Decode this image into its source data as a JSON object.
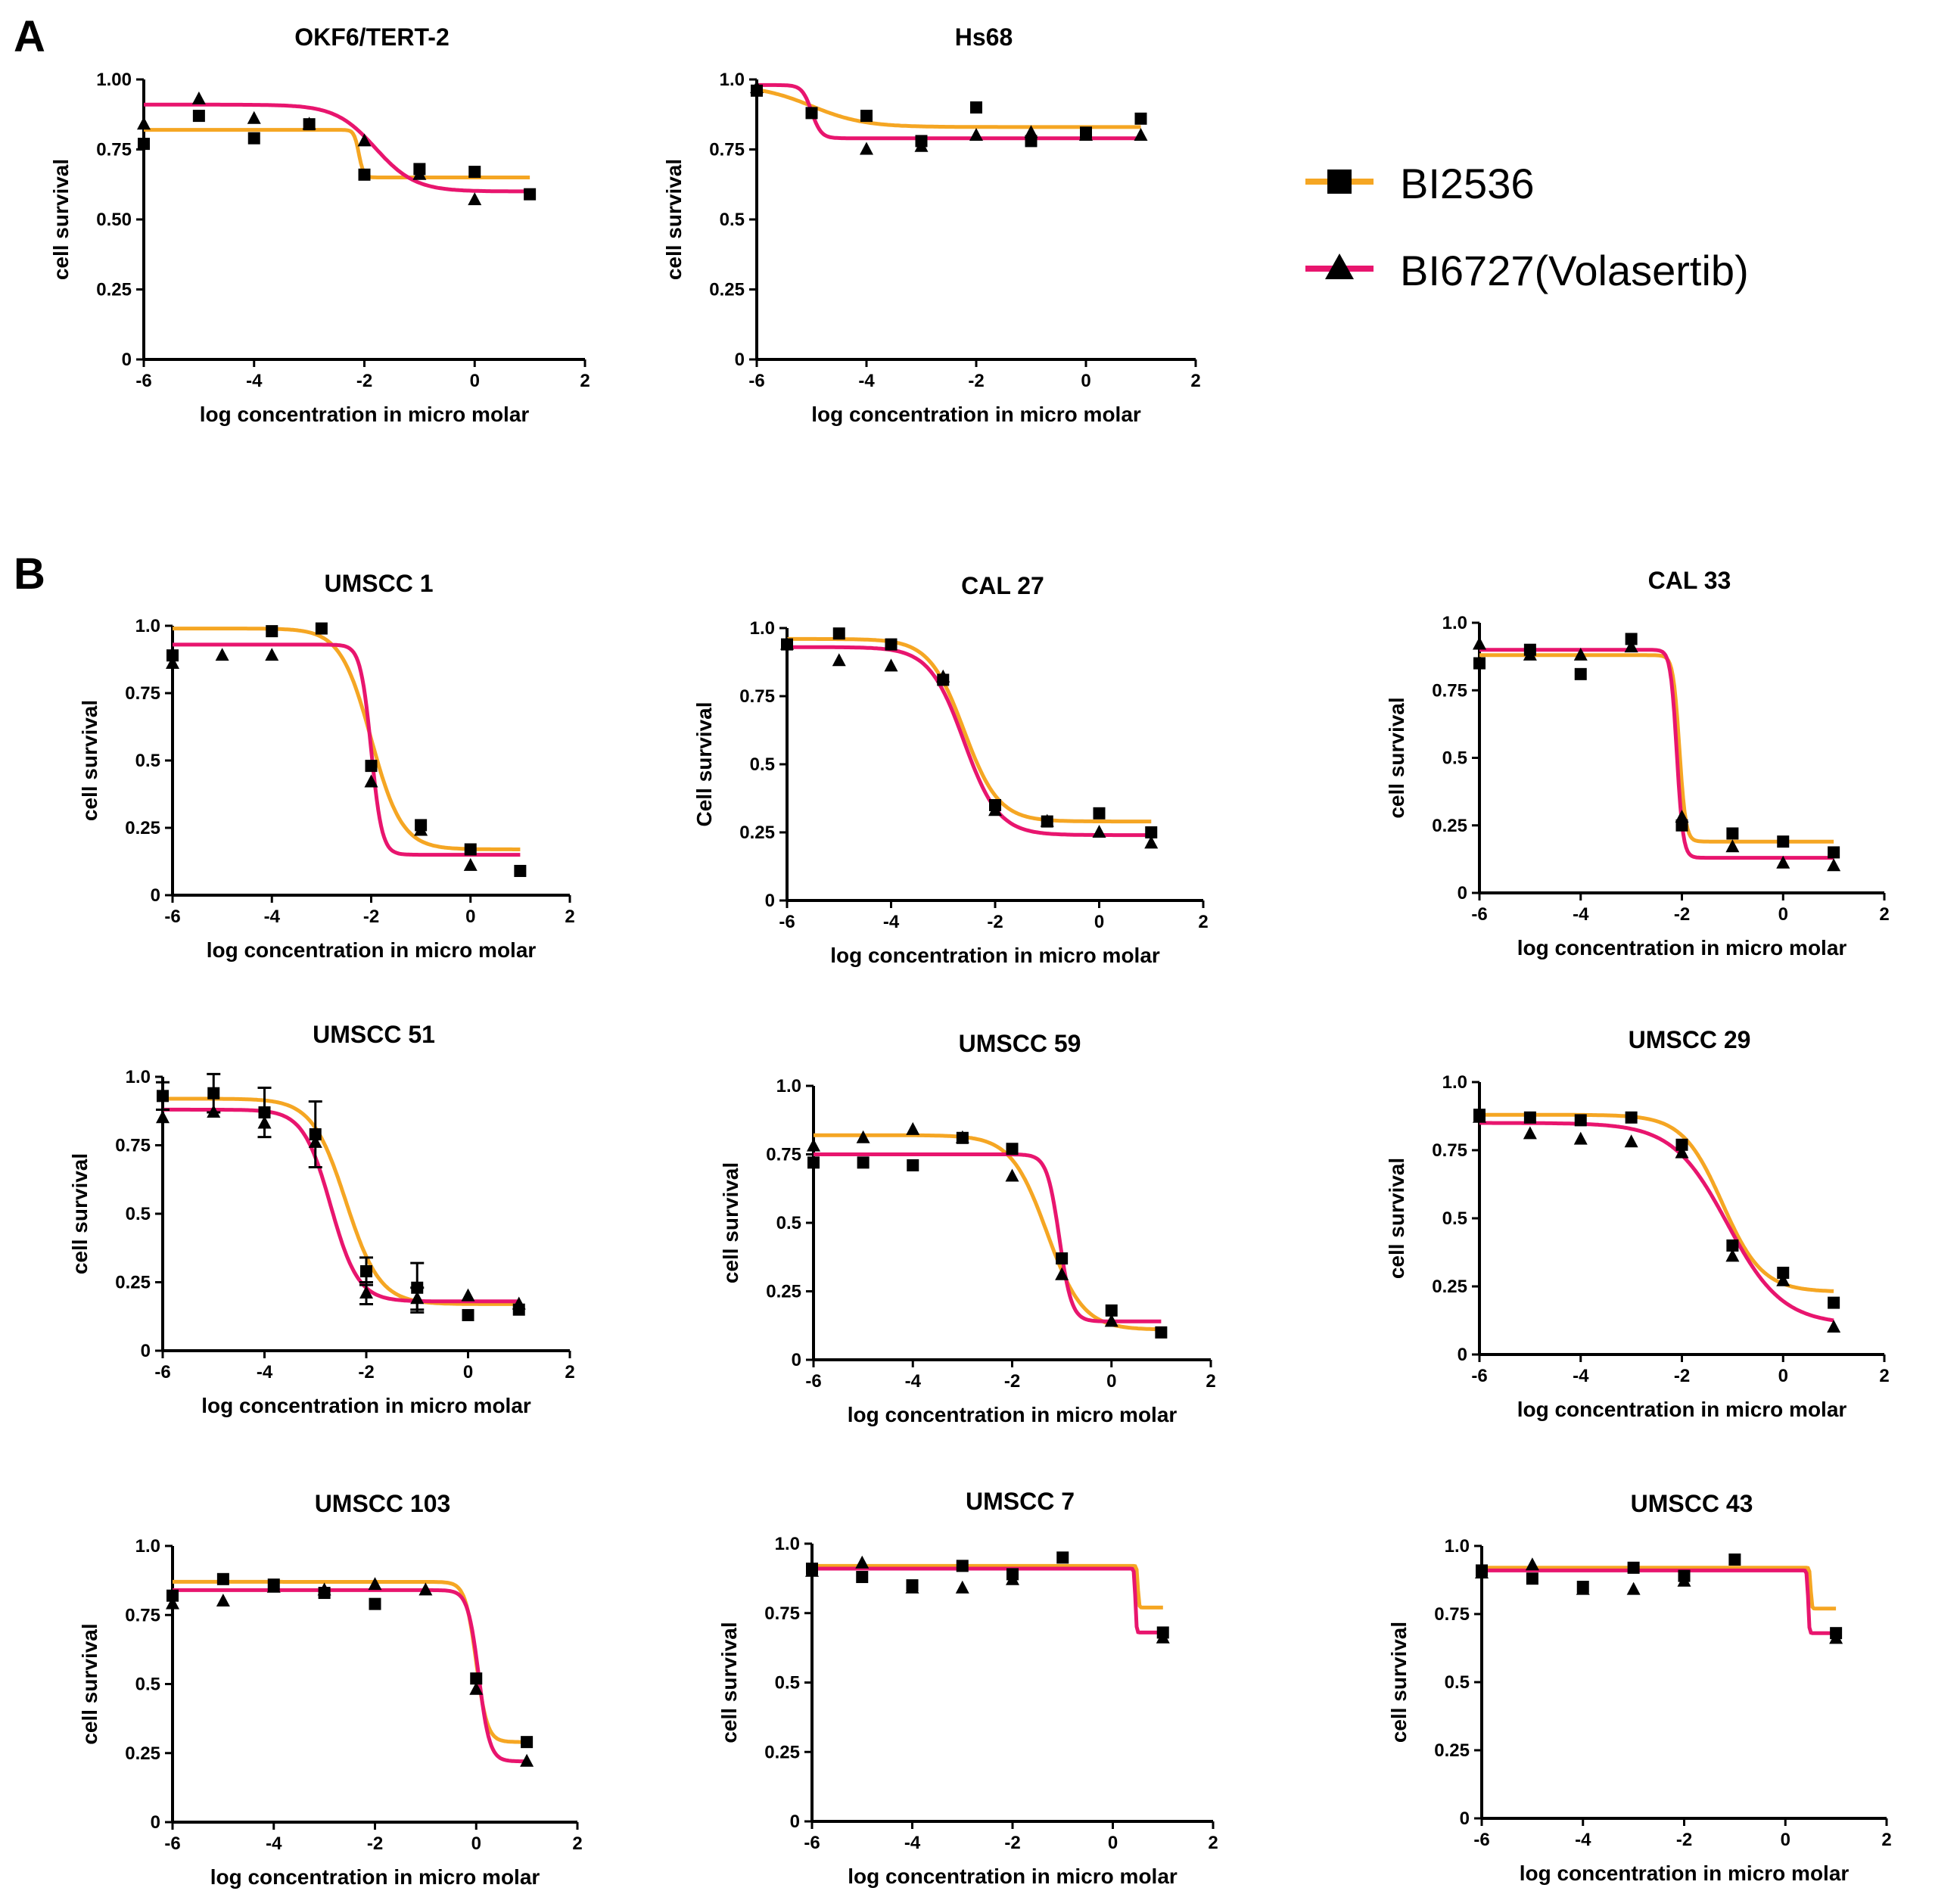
{
  "panels": {
    "a": "A",
    "b": "B"
  },
  "colors": {
    "bi2536": "#F5A623",
    "bi6727": "#E8156E",
    "marker": "#000000",
    "axis": "#000000"
  },
  "legend": {
    "entries": [
      {
        "label": "BI2536",
        "marker": "square",
        "color": "#F5A623"
      },
      {
        "label": "BI6727(Volasertib)",
        "marker": "triangle",
        "color": "#E8156E"
      }
    ]
  },
  "chart_data": [
    {
      "id": "okf6",
      "type": "scatter",
      "title": "OKF6/TERT-2",
      "xlabel": "log concentration in micro molar",
      "ylabel": "cell survival",
      "xlim": [
        -6,
        2
      ],
      "ylim": [
        0,
        1
      ],
      "xticks": [
        "-6",
        "-4",
        "-2",
        "0",
        "2"
      ],
      "yticks": [
        "0",
        "0.25",
        "0.50",
        "0.75",
        "1.00"
      ],
      "series": [
        {
          "name": "BI2536",
          "marker": "square",
          "x": [
            -6,
            -5,
            -4,
            -3,
            -2,
            -1,
            0,
            1
          ],
          "y": [
            0.77,
            0.87,
            0.79,
            0.84,
            0.66,
            0.68,
            0.67,
            0.59
          ],
          "curve": {
            "top": 0.82,
            "bottom": 0.65,
            "logEC50": -2.1,
            "hill": 10
          }
        },
        {
          "name": "BI6727(Volasertib)",
          "marker": "triangle",
          "x": [
            -6,
            -5,
            -4,
            -3,
            -2,
            -1,
            0
          ],
          "y": [
            0.84,
            0.93,
            0.86,
            0.84,
            0.78,
            0.66,
            0.57
          ],
          "curve": {
            "top": 0.91,
            "bottom": 0.6,
            "logEC50": -1.8,
            "hill": 1.2
          }
        }
      ]
    },
    {
      "id": "hs68",
      "type": "scatter",
      "title": "Hs68",
      "xlabel": "log concentration in micro molar",
      "ylabel": "cell survival",
      "xlim": [
        -6,
        2
      ],
      "ylim": [
        0,
        1
      ],
      "xticks": [
        "-6",
        "-4",
        "-2",
        "0",
        "2"
      ],
      "yticks": [
        "0",
        "0.25",
        "0.5",
        "0.75",
        "1.0"
      ],
      "series": [
        {
          "name": "BI2536",
          "marker": "square",
          "x": [
            -6,
            -5,
            -4,
            -3,
            -2,
            -1,
            0,
            1
          ],
          "y": [
            0.96,
            0.88,
            0.87,
            0.78,
            0.9,
            0.78,
            0.81,
            0.86
          ],
          "curve": {
            "top": 0.98,
            "bottom": 0.83,
            "logEC50": -5.0,
            "hill": 0.9
          }
        },
        {
          "name": "BI6727(Volasertib)",
          "marker": "triangle",
          "x": [
            -6,
            -4,
            -3,
            -2,
            -1,
            0,
            1
          ],
          "y": [
            0.97,
            0.75,
            0.76,
            0.8,
            0.81,
            0.8,
            0.8
          ],
          "curve": {
            "top": 0.98,
            "bottom": 0.79,
            "logEC50": -5.0,
            "hill": 5
          }
        }
      ]
    },
    {
      "id": "umscc1",
      "type": "scatter",
      "title": "UMSCC 1",
      "xlabel": "log concentration in micro molar",
      "ylabel": "cell survival",
      "xlim": [
        -6,
        2
      ],
      "ylim": [
        0,
        1
      ],
      "xticks": [
        "-6",
        "-4",
        "-2",
        "0",
        "2"
      ],
      "yticks": [
        "0",
        "0.25",
        "0.5",
        "0.75",
        "1.0"
      ],
      "series": [
        {
          "name": "BI2536",
          "marker": "square",
          "x": [
            -6,
            -4,
            -3,
            -2,
            -1,
            0,
            1
          ],
          "y": [
            0.89,
            0.98,
            0.99,
            0.48,
            0.26,
            0.17,
            0.09
          ],
          "curve": {
            "top": 0.99,
            "bottom": 0.17,
            "logEC50": -2.0,
            "hill": 1.4
          }
        },
        {
          "name": "BI6727(Volasertib)",
          "marker": "triangle",
          "x": [
            -6,
            -5,
            -4,
            -2,
            -1,
            0
          ],
          "y": [
            0.86,
            0.89,
            0.89,
            0.42,
            0.24,
            0.11
          ],
          "curve": {
            "top": 0.93,
            "bottom": 0.15,
            "logEC50": -2.0,
            "hill": 4
          }
        }
      ]
    },
    {
      "id": "cal27",
      "type": "scatter",
      "title": "CAL 27",
      "xlabel": "log concentration in micro molar",
      "ylabel": "Cell survival",
      "xlim": [
        -6,
        2
      ],
      "ylim": [
        0,
        1
      ],
      "xticks": [
        "-6",
        "-4",
        "-2",
        "0",
        "2"
      ],
      "yticks": [
        "0",
        "0.25",
        "0.5",
        "0.75",
        "1.0"
      ],
      "series": [
        {
          "name": "BI2536",
          "marker": "square",
          "x": [
            -6,
            -5,
            -4,
            -3,
            -2,
            -1,
            0,
            1
          ],
          "y": [
            0.94,
            0.98,
            0.94,
            0.81,
            0.35,
            0.29,
            0.32,
            0.25
          ],
          "curve": {
            "top": 0.96,
            "bottom": 0.29,
            "logEC50": -2.6,
            "hill": 1.3
          }
        },
        {
          "name": "BI6727(Volasertib)",
          "marker": "triangle",
          "x": [
            -6,
            -5,
            -4,
            -3,
            -2,
            -1,
            0,
            1
          ],
          "y": [
            0.94,
            0.88,
            0.86,
            0.82,
            0.33,
            0.29,
            0.25,
            0.21
          ],
          "curve": {
            "top": 0.93,
            "bottom": 0.24,
            "logEC50": -2.6,
            "hill": 1.3
          }
        }
      ]
    },
    {
      "id": "cal33",
      "type": "scatter",
      "title": "CAL 33",
      "xlabel": "log concentration in micro molar",
      "ylabel": "cell survival",
      "xlim": [
        -6,
        2
      ],
      "ylim": [
        0,
        1
      ],
      "xticks": [
        "-6",
        "-4",
        "-2",
        "0",
        "2"
      ],
      "yticks": [
        "0",
        "0.25",
        "0.5",
        "0.75",
        "1.0"
      ],
      "series": [
        {
          "name": "BI2536",
          "marker": "square",
          "x": [
            -6,
            -5,
            -4,
            -3,
            -2,
            -1,
            0,
            1
          ],
          "y": [
            0.85,
            0.9,
            0.81,
            0.94,
            0.25,
            0.22,
            0.19,
            0.15
          ],
          "curve": {
            "top": 0.88,
            "bottom": 0.19,
            "logEC50": -2.05,
            "hill": 7
          }
        },
        {
          "name": "BI6727(Volasertib)",
          "marker": "triangle",
          "x": [
            -6,
            -5,
            -4,
            -3,
            -2,
            -1,
            0,
            1
          ],
          "y": [
            0.92,
            0.88,
            0.88,
            0.91,
            0.28,
            0.17,
            0.11,
            0.1
          ],
          "curve": {
            "top": 0.9,
            "bottom": 0.13,
            "logEC50": -2.1,
            "hill": 7
          }
        }
      ]
    },
    {
      "id": "umscc51",
      "type": "scatter",
      "title": "UMSCC 51",
      "xlabel": "log concentration in micro molar",
      "ylabel": "cell survival",
      "xlim": [
        -6,
        2
      ],
      "ylim": [
        0,
        1
      ],
      "xticks": [
        "-6",
        "-4",
        "-2",
        "0",
        "2"
      ],
      "yticks": [
        "0",
        "0.25",
        "0.5",
        "0.75",
        "1.0"
      ],
      "series": [
        {
          "name": "BI2536",
          "marker": "square",
          "x": [
            -6,
            -5,
            -4,
            -3,
            -2,
            -1,
            0,
            1
          ],
          "y": [
            0.93,
            0.94,
            0.87,
            0.79,
            0.29,
            0.23,
            0.13,
            0.15
          ],
          "err": [
            0.05,
            0.07,
            0.09,
            0.12,
            0.05,
            0.09,
            0,
            0
          ],
          "curve": {
            "top": 0.92,
            "bottom": 0.17,
            "logEC50": -2.4,
            "hill": 1.3
          }
        },
        {
          "name": "BI6727(Volasertib)",
          "marker": "triangle",
          "x": [
            -6,
            -5,
            -4,
            -3,
            -2,
            -1,
            0,
            1
          ],
          "y": [
            0.85,
            0.87,
            0.83,
            0.76,
            0.21,
            0.19,
            0.2,
            0.17
          ],
          "err": [
            0,
            0,
            0,
            0,
            0.04,
            0.04,
            0,
            0
          ],
          "curve": {
            "top": 0.88,
            "bottom": 0.18,
            "logEC50": -2.7,
            "hill": 1.6
          }
        }
      ]
    },
    {
      "id": "umscc59",
      "type": "scatter",
      "title": "UMSCC 59",
      "xlabel": "log concentration in micro molar",
      "ylabel": "cell survival",
      "xlim": [
        -6,
        2
      ],
      "ylim": [
        0,
        1
      ],
      "xticks": [
        "-6",
        "-4",
        "-2",
        "0",
        "2"
      ],
      "yticks": [
        "0",
        "0.25",
        "0.5",
        "0.75",
        "1.0"
      ],
      "series": [
        {
          "name": "BI2536",
          "marker": "square",
          "x": [
            -6,
            -5,
            -4,
            -3,
            -2,
            -1,
            0,
            1
          ],
          "y": [
            0.72,
            0.72,
            0.71,
            0.81,
            0.77,
            0.37,
            0.18,
            0.1
          ],
          "curve": {
            "top": 0.82,
            "bottom": 0.11,
            "logEC50": -1.3,
            "hill": 1.2
          }
        },
        {
          "name": "BI6727(Volasertib)",
          "marker": "triangle",
          "x": [
            -6,
            -5,
            -4,
            -3,
            -2,
            -1,
            0
          ],
          "y": [
            0.78,
            0.81,
            0.84,
            0.81,
            0.67,
            0.31,
            0.14
          ],
          "curve": {
            "top": 0.75,
            "bottom": 0.14,
            "logEC50": -1.05,
            "hill": 3.5
          }
        }
      ]
    },
    {
      "id": "umscc29",
      "type": "scatter",
      "title": "UMSCC 29",
      "xlabel": "log concentration in micro molar",
      "ylabel": "cell survival",
      "xlim": [
        -6,
        2
      ],
      "ylim": [
        0,
        1
      ],
      "xticks": [
        "-6",
        "-4",
        "-2",
        "0",
        "2"
      ],
      "yticks": [
        "0",
        "0.25",
        "0.5",
        "0.75",
        "1.0"
      ],
      "series": [
        {
          "name": "BI2536",
          "marker": "square",
          "x": [
            -6,
            -5,
            -4,
            -3,
            -2,
            -1,
            0,
            1
          ],
          "y": [
            0.88,
            0.87,
            0.86,
            0.87,
            0.77,
            0.4,
            0.3,
            0.19
          ],
          "curve": {
            "top": 0.88,
            "bottom": 0.23,
            "logEC50": -1.2,
            "hill": 1.1
          }
        },
        {
          "name": "BI6727(Volasertib)",
          "marker": "triangle",
          "x": [
            -6,
            -5,
            -4,
            -3,
            -2,
            -1,
            0,
            1
          ],
          "y": [
            0.87,
            0.81,
            0.79,
            0.78,
            0.74,
            0.36,
            0.27,
            0.1
          ],
          "curve": {
            "top": 0.85,
            "bottom": 0.11,
            "logEC50": -1.1,
            "hill": 0.8
          }
        }
      ]
    },
    {
      "id": "umscc103",
      "type": "scatter",
      "title": "UMSCC 103",
      "xlabel": "log concentration in micro molar",
      "ylabel": "cell survival",
      "xlim": [
        -6,
        2
      ],
      "ylim": [
        0,
        1
      ],
      "xticks": [
        "-6",
        "-4",
        "-2",
        "0",
        "2"
      ],
      "yticks": [
        "0",
        "0.25",
        "0.5",
        "0.75",
        "1.0"
      ],
      "series": [
        {
          "name": "BI2536",
          "marker": "square",
          "x": [
            -6,
            -5,
            -4,
            -3,
            -2,
            0,
            1
          ],
          "y": [
            0.82,
            0.88,
            0.86,
            0.83,
            0.79,
            0.52,
            0.29
          ],
          "curve": {
            "top": 0.87,
            "bottom": 0.29,
            "logEC50": 0.0,
            "hill": 4
          }
        },
        {
          "name": "BI6727(Volasertib)",
          "marker": "triangle",
          "x": [
            -6,
            -5,
            -4,
            -3,
            -2,
            -1,
            0,
            1
          ],
          "y": [
            0.79,
            0.8,
            0.85,
            0.84,
            0.86,
            0.84,
            0.48,
            0.22
          ],
          "curve": {
            "top": 0.84,
            "bottom": 0.22,
            "logEC50": 0.05,
            "hill": 4
          }
        }
      ]
    },
    {
      "id": "umscc7",
      "type": "scatter",
      "title": "UMSCC 7",
      "xlabel": "log concentration in micro molar",
      "ylabel": "cell survival",
      "xlim": [
        -6,
        2
      ],
      "ylim": [
        0,
        1
      ],
      "xticks": [
        "-6",
        "-4",
        "-2",
        "0",
        "2"
      ],
      "yticks": [
        "0",
        "0.25",
        "0.5",
        "0.75",
        "1.0"
      ],
      "series": [
        {
          "name": "BI2536",
          "marker": "square",
          "x": [
            -6,
            -5,
            -4,
            -3,
            -2,
            -1,
            1
          ],
          "y": [
            0.91,
            0.88,
            0.85,
            0.92,
            0.89,
            0.95,
            0.68
          ],
          "curve": {
            "top": 0.92,
            "bottom": 0.77,
            "logEC50": 0.5,
            "hill": 40
          }
        },
        {
          "name": "BI6727(Volasertib)",
          "marker": "triangle",
          "x": [
            -6,
            -5,
            -4,
            -3,
            -2,
            1
          ],
          "y": [
            0.9,
            0.93,
            0.84,
            0.84,
            0.87,
            0.66
          ],
          "curve": {
            "top": 0.91,
            "bottom": 0.68,
            "logEC50": 0.45,
            "hill": 40
          }
        }
      ]
    },
    {
      "id": "umscc43",
      "type": "scatter",
      "title": "UMSCC 43",
      "xlabel": "log concentration in micro molar",
      "ylabel": "cell survival",
      "xlim": [
        -6,
        2
      ],
      "ylim": [
        0,
        1
      ],
      "xticks": [
        "-6",
        "-4",
        "-2",
        "0",
        "2"
      ],
      "yticks": [
        "0",
        "0.25",
        "0.5",
        "0.75",
        "1.0"
      ],
      "series": [
        {
          "name": "BI2536",
          "marker": "square",
          "x": [
            -6,
            -5,
            -4,
            -3,
            -2,
            -1,
            1
          ],
          "y": [
            0.91,
            0.88,
            0.85,
            0.92,
            0.89,
            0.95,
            0.68
          ],
          "curve": {
            "top": 0.92,
            "bottom": 0.77,
            "logEC50": 0.5,
            "hill": 40
          }
        },
        {
          "name": "BI6727(Volasertib)",
          "marker": "triangle",
          "x": [
            -6,
            -5,
            -4,
            -3,
            -2,
            1
          ],
          "y": [
            0.9,
            0.93,
            0.84,
            0.84,
            0.87,
            0.66
          ],
          "curve": {
            "top": 0.91,
            "bottom": 0.68,
            "logEC50": 0.45,
            "hill": 40
          }
        }
      ]
    }
  ]
}
